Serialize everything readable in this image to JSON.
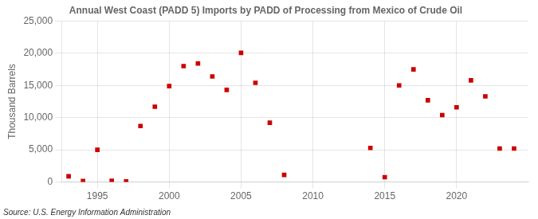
{
  "chart_data": {
    "type": "scatter",
    "title": "Annual West Coast (PADD 5) Imports by PADD of Processing from Mexico of Crude Oil",
    "ylabel": "Thousand Barrels",
    "source": "Source: U.S. Energy Information Administration",
    "color": "#cc0000",
    "marker": "square",
    "grid": true,
    "xlim": [
      1992.5,
      2025
    ],
    "xticks": [
      1995,
      2000,
      2005,
      2010,
      2015,
      2020
    ],
    "ylim": [
      0,
      25000
    ],
    "yticks": [
      0,
      {
        "value": 5000,
        "label": "5,000"
      },
      {
        "value": 10000,
        "label": "10,000"
      },
      {
        "value": 15000,
        "label": "15,000"
      },
      {
        "value": 20000,
        "label": "20,000"
      },
      {
        "value": 25000,
        "label": "25,000"
      }
    ],
    "x": [
      1993,
      1994,
      1995,
      1996,
      1997,
      1998,
      1999,
      2000,
      2001,
      2002,
      2003,
      2004,
      2005,
      2006,
      2007,
      2008,
      2014,
      2015,
      2016,
      2017,
      2018,
      2019,
      2020,
      2021,
      2022,
      2023,
      2024
    ],
    "values": [
      900,
      150,
      5000,
      200,
      100,
      8700,
      11700,
      14900,
      18000,
      18400,
      16400,
      14300,
      20050,
      15400,
      9200,
      1100,
      5300,
      750,
      15000,
      17500,
      12700,
      10400,
      11600,
      15800,
      13300,
      5200,
      5200
    ]
  }
}
